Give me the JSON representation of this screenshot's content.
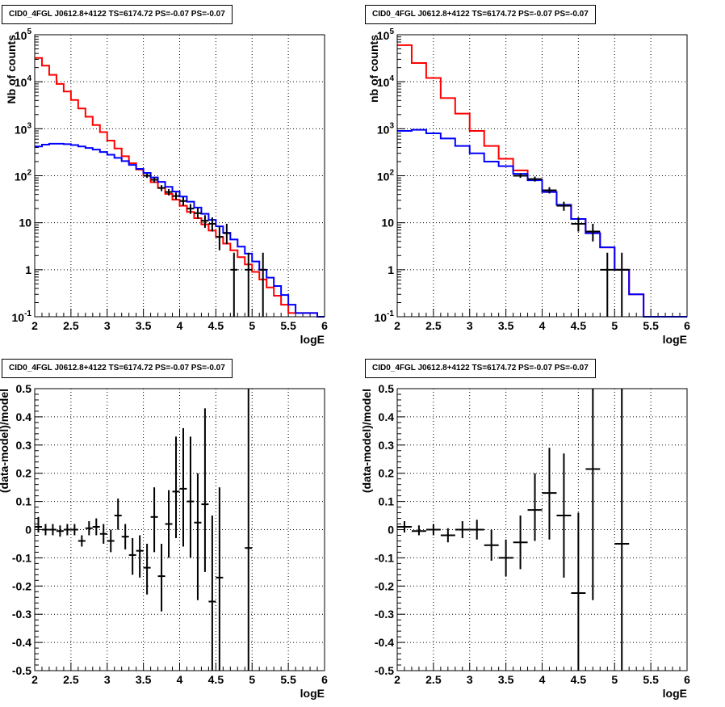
{
  "chart_data": [
    {
      "type": "histogram",
      "title": "CID0_4FGL J0612.8+4122 TS=6174.72 PS=-0.07 PS=-0.07",
      "xlabel": "logE",
      "ylabel": "Nb of counts",
      "xlim": [
        2,
        6
      ],
      "ylim": [
        0.1,
        100000
      ],
      "yscale": "log",
      "grid": true,
      "x_ticks": [
        "2",
        "2.5",
        "3",
        "3.5",
        "4",
        "4.5",
        "5",
        "5.5",
        "6"
      ],
      "y_ticks": [
        "10^-1",
        "1",
        "10",
        "10^2",
        "10^3",
        "10^4",
        "10^5"
      ],
      "colors": {
        "red": "#ff0000",
        "blue": "#0000ff",
        "data": "#000000"
      },
      "bin_edges": [
        2.0,
        2.1,
        2.2,
        2.3,
        2.4,
        2.5,
        2.6,
        2.7,
        2.8,
        2.9,
        3.0,
        3.1,
        3.2,
        3.3,
        3.4,
        3.5,
        3.6,
        3.7,
        3.8,
        3.9,
        4.0,
        4.1,
        4.2,
        4.3,
        4.4,
        4.5,
        4.6,
        4.7,
        4.8,
        4.9,
        5.0,
        5.1,
        5.2,
        5.3,
        5.4,
        5.5,
        5.6,
        5.7,
        5.8,
        5.9,
        6.0
      ],
      "red_values": [
        32000,
        22000,
        14000,
        9000,
        6200,
        4100,
        2700,
        1800,
        1200,
        850,
        560,
        380,
        260,
        185,
        135,
        100,
        73,
        55,
        41,
        31,
        23,
        17,
        12.5,
        9.2,
        6.8,
        5.0,
        3.6,
        2.6,
        1.85,
        1.3,
        0.9,
        0.62,
        0.42,
        0.28,
        0.18,
        0.12,
        0.12,
        0.12,
        0.12,
        0.1
      ],
      "blue_values": [
        420,
        460,
        480,
        480,
        470,
        450,
        420,
        390,
        360,
        320,
        280,
        240,
        205,
        170,
        140,
        115,
        92,
        74,
        58,
        46,
        36,
        28,
        21,
        15.5,
        11.5,
        8.4,
        6.1,
        4.4,
        3.1,
        2.2,
        1.5,
        1.0,
        0.68,
        0.45,
        0.29,
        0.18,
        0.12,
        0.12,
        0.12,
        0.1
      ],
      "data_points": [
        {
          "x": 4.55,
          "y": 5.0,
          "ylo": 2.6,
          "yhi": 8.5
        },
        {
          "x": 4.65,
          "y": 6.0,
          "ylo": 3.5,
          "yhi": 9.5
        },
        {
          "x": 4.75,
          "y": 1.0,
          "ylo": 0.1,
          "yhi": 2.3
        },
        {
          "x": 4.95,
          "y": 1.0,
          "ylo": 0.1,
          "yhi": 2.3
        },
        {
          "x": 5.15,
          "y": 1.0,
          "ylo": 0.1,
          "yhi": 2.3
        },
        {
          "x": 3.55,
          "y": 100,
          "ylo": 90,
          "yhi": 110
        },
        {
          "x": 3.65,
          "y": 82,
          "ylo": 72,
          "yhi": 92
        },
        {
          "x": 3.75,
          "y": 55,
          "ylo": 47,
          "yhi": 63
        },
        {
          "x": 3.85,
          "y": 45,
          "ylo": 38,
          "yhi": 52
        },
        {
          "x": 3.95,
          "y": 37,
          "ylo": 31,
          "yhi": 44
        },
        {
          "x": 4.05,
          "y": 29,
          "ylo": 23,
          "yhi": 35
        },
        {
          "x": 4.15,
          "y": 20,
          "ylo": 15.5,
          "yhi": 25
        },
        {
          "x": 4.25,
          "y": 16,
          "ylo": 12,
          "yhi": 21
        },
        {
          "x": 4.35,
          "y": 11,
          "ylo": 7.8,
          "yhi": 14.5
        },
        {
          "x": 4.45,
          "y": 9.5,
          "ylo": 6.5,
          "yhi": 13
        }
      ]
    },
    {
      "type": "histogram",
      "title": "CID0_4FGL J0612.8+4122 TS=6174.72 PS=-0.07 PS=-0.07",
      "xlabel": "logE",
      "ylabel": "nb of counts",
      "xlim": [
        2,
        6
      ],
      "ylim": [
        0.1,
        100000
      ],
      "yscale": "log",
      "grid": true,
      "x_ticks": [
        "2",
        "2.5",
        "3",
        "3.5",
        "4",
        "4.5",
        "5",
        "5.5",
        "6"
      ],
      "y_ticks": [
        "10^-1",
        "1",
        "10",
        "10^2",
        "10^3",
        "10^4",
        "10^5"
      ],
      "colors": {
        "red": "#ff0000",
        "blue": "#0000ff",
        "data": "#000000"
      },
      "bin_edges": [
        2.0,
        2.2,
        2.4,
        2.6,
        2.8,
        3.0,
        3.2,
        3.4,
        3.6,
        3.8,
        4.0,
        4.2,
        4.4,
        4.6,
        4.8,
        5.0,
        5.2,
        5.4,
        5.6,
        5.8,
        6.0
      ],
      "red_values": [
        60000,
        25000,
        12000,
        4500,
        2100,
        900,
        430,
        230,
        130,
        82,
        45,
        24,
        12,
        6,
        3,
        1.0,
        0.3,
        0.1,
        0.08,
        0.08
      ],
      "blue_values": [
        900,
        950,
        800,
        620,
        430,
        300,
        200,
        160,
        110,
        80,
        45,
        24,
        12,
        6,
        3,
        1.0,
        0.3,
        0.1,
        0.08,
        0.08
      ],
      "data_points": [
        {
          "x": 3.7,
          "y": 100,
          "ylo": 90,
          "yhi": 112
        },
        {
          "x": 3.9,
          "y": 85,
          "ylo": 75,
          "yhi": 96
        },
        {
          "x": 4.1,
          "y": 49,
          "ylo": 42,
          "yhi": 57
        },
        {
          "x": 4.3,
          "y": 23,
          "ylo": 18,
          "yhi": 28
        },
        {
          "x": 4.5,
          "y": 9.5,
          "ylo": 6.5,
          "yhi": 13
        },
        {
          "x": 4.7,
          "y": 6.5,
          "ylo": 4,
          "yhi": 9.5
        },
        {
          "x": 4.9,
          "y": 1.0,
          "ylo": 0.1,
          "yhi": 2.3
        },
        {
          "x": 5.1,
          "y": 1.0,
          "ylo": 0.1,
          "yhi": 2.3
        }
      ]
    },
    {
      "type": "scatter",
      "title": "CID0_4FGL J0612.8+4122 TS=6174.72 PS=-0.07 PS=-0.07",
      "xlabel": "logE",
      "ylabel": "(data-model)/model",
      "xlim": [
        2,
        6
      ],
      "ylim": [
        -0.5,
        0.5
      ],
      "grid": true,
      "x_ticks": [
        "2",
        "2.5",
        "3",
        "3.5",
        "4",
        "4.5",
        "5",
        "5.5",
        "6"
      ],
      "y_ticks": [
        "-0.5",
        "-0.4",
        "-0.3",
        "-0.2",
        "-0.1",
        "0",
        "0.1",
        "0.2",
        "0.3",
        "0.4",
        "0.5"
      ],
      "xerr": 0.05,
      "points": [
        {
          "x": 2.05,
          "y": 0.01,
          "ylo": -0.01,
          "yhi": 0.045
        },
        {
          "x": 2.15,
          "y": 0.0,
          "ylo": -0.02,
          "yhi": 0.02
        },
        {
          "x": 2.25,
          "y": 0.0,
          "ylo": -0.02,
          "yhi": 0.02
        },
        {
          "x": 2.35,
          "y": -0.005,
          "ylo": -0.025,
          "yhi": 0.015
        },
        {
          "x": 2.45,
          "y": 0.0,
          "ylo": -0.02,
          "yhi": 0.02
        },
        {
          "x": 2.55,
          "y": 0.0,
          "ylo": -0.02,
          "yhi": 0.02
        },
        {
          "x": 2.65,
          "y": -0.04,
          "ylo": -0.06,
          "yhi": -0.02
        },
        {
          "x": 2.75,
          "y": 0.005,
          "ylo": -0.02,
          "yhi": 0.03
        },
        {
          "x": 2.85,
          "y": 0.01,
          "ylo": -0.02,
          "yhi": 0.04
        },
        {
          "x": 2.95,
          "y": -0.015,
          "ylo": -0.05,
          "yhi": 0.02
        },
        {
          "x": 3.05,
          "y": -0.04,
          "ylo": -0.08,
          "yhi": 0.0
        },
        {
          "x": 3.15,
          "y": 0.05,
          "ylo": 0.0,
          "yhi": 0.11
        },
        {
          "x": 3.25,
          "y": -0.025,
          "ylo": -0.07,
          "yhi": 0.02
        },
        {
          "x": 3.35,
          "y": -0.09,
          "ylo": -0.16,
          "yhi": -0.03
        },
        {
          "x": 3.45,
          "y": -0.075,
          "ylo": -0.17,
          "yhi": -0.02
        },
        {
          "x": 3.55,
          "y": -0.135,
          "ylo": -0.23,
          "yhi": -0.05
        },
        {
          "x": 3.65,
          "y": 0.045,
          "ylo": -0.08,
          "yhi": 0.15
        },
        {
          "x": 3.75,
          "y": -0.165,
          "ylo": -0.29,
          "yhi": -0.05
        },
        {
          "x": 3.85,
          "y": 0.02,
          "ylo": -0.1,
          "yhi": 0.14
        },
        {
          "x": 3.95,
          "y": 0.135,
          "ylo": -0.03,
          "yhi": 0.33
        },
        {
          "x": 4.05,
          "y": 0.145,
          "ylo": -0.06,
          "yhi": 0.36
        },
        {
          "x": 4.15,
          "y": 0.1,
          "ylo": -0.1,
          "yhi": 0.33
        },
        {
          "x": 4.25,
          "y": 0.025,
          "ylo": -0.25,
          "yhi": 0.2
        },
        {
          "x": 4.35,
          "y": 0.09,
          "ylo": -0.15,
          "yhi": 0.43
        },
        {
          "x": 4.45,
          "y": -0.255,
          "ylo": -0.5,
          "yhi": 0.05
        },
        {
          "x": 4.55,
          "y": -0.17,
          "ylo": -0.5,
          "yhi": 0.15
        },
        {
          "x": 4.95,
          "y": -0.065,
          "ylo": -0.5,
          "yhi": 0.5
        }
      ]
    },
    {
      "type": "scatter",
      "title": "CID0_4FGL J0612.8+4122 TS=6174.72 PS=-0.07 PS=-0.07",
      "xlabel": "logE",
      "ylabel": "(data-model)/model",
      "xlim": [
        2,
        6
      ],
      "ylim": [
        -0.5,
        0.5
      ],
      "grid": true,
      "x_ticks": [
        "2",
        "2.5",
        "3",
        "3.5",
        "4",
        "4.5",
        "5",
        "5.5",
        "6"
      ],
      "y_ticks": [
        "-0.5",
        "-0.4",
        "-0.3",
        "-0.2",
        "-0.1",
        "0",
        "0.1",
        "0.2",
        "0.3",
        "0.4",
        "0.5"
      ],
      "xerr": 0.1,
      "points": [
        {
          "x": 2.1,
          "y": 0.01,
          "ylo": -0.01,
          "yhi": 0.03
        },
        {
          "x": 2.3,
          "y": -0.005,
          "ylo": -0.02,
          "yhi": 0.015
        },
        {
          "x": 2.5,
          "y": 0.0,
          "ylo": -0.02,
          "yhi": 0.02
        },
        {
          "x": 2.7,
          "y": -0.02,
          "ylo": -0.045,
          "yhi": 0.005
        },
        {
          "x": 2.9,
          "y": 0.0,
          "ylo": -0.03,
          "yhi": 0.03
        },
        {
          "x": 3.1,
          "y": 0.0,
          "ylo": -0.035,
          "yhi": 0.035
        },
        {
          "x": 3.3,
          "y": -0.055,
          "ylo": -0.11,
          "yhi": 0.0
        },
        {
          "x": 3.5,
          "y": -0.1,
          "ylo": -0.165,
          "yhi": -0.035
        },
        {
          "x": 3.7,
          "y": -0.045,
          "ylo": -0.14,
          "yhi": 0.05
        },
        {
          "x": 3.9,
          "y": 0.07,
          "ylo": -0.04,
          "yhi": 0.2
        },
        {
          "x": 4.1,
          "y": 0.13,
          "ylo": -0.035,
          "yhi": 0.29
        },
        {
          "x": 4.3,
          "y": 0.05,
          "ylo": -0.17,
          "yhi": 0.27
        },
        {
          "x": 4.5,
          "y": -0.225,
          "ylo": -0.5,
          "yhi": 0.06
        },
        {
          "x": 4.7,
          "y": 0.215,
          "ylo": -0.25,
          "yhi": 0.5
        },
        {
          "x": 5.1,
          "y": -0.05,
          "ylo": -0.5,
          "yhi": 0.5
        }
      ]
    }
  ]
}
